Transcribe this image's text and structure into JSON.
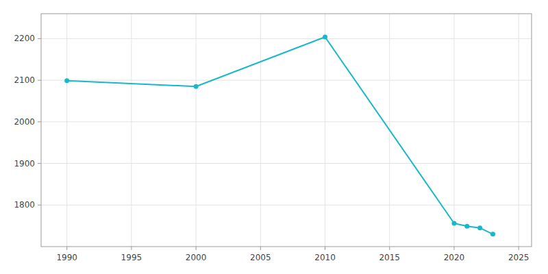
{
  "chart_data": {
    "type": "line",
    "x": [
      1990,
      2000,
      2010,
      2020,
      2021,
      2022,
      2023
    ],
    "values": [
      2099,
      2085,
      2204,
      1756,
      1749,
      1745,
      1730
    ],
    "color": "#17b8c8",
    "marker": "circle",
    "grid": true,
    "xlim": [
      1988,
      2026
    ],
    "ylim": [
      1700,
      2260
    ],
    "xticks": [
      1990,
      1995,
      2000,
      2005,
      2010,
      2015,
      2020,
      2025
    ],
    "yticks": [
      1800,
      1900,
      2000,
      2100,
      2200
    ]
  }
}
